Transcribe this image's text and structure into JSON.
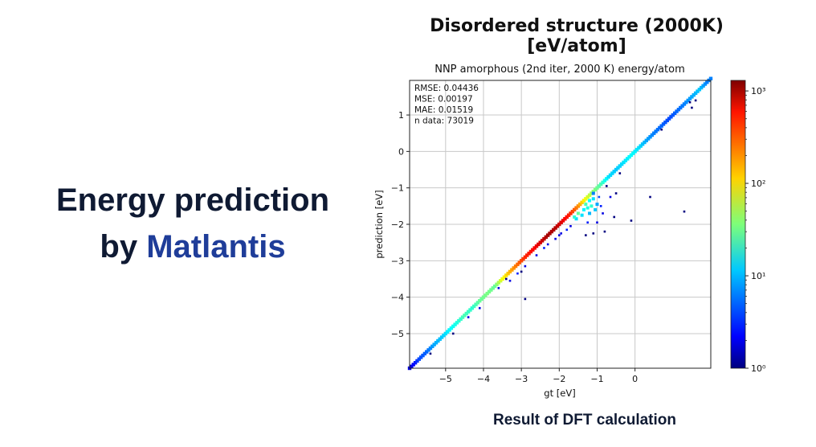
{
  "slide": {
    "headline_line1": "Energy prediction",
    "headline_by": "by ",
    "headline_brand": "Matlantis",
    "top_title": "Disordered structure (2000K) [eV/atom]",
    "bottom_caption": "Result of DFT calculation"
  },
  "colors": {
    "headline": "#0f1a33",
    "brand": "#1f3d99"
  },
  "chart_data": {
    "type": "heatmap",
    "title": "NNP amorphous (2nd iter, 2000 K) energy/atom",
    "xlabel": "gt [eV]",
    "ylabel": "prediction [eV]",
    "xlim": [
      -5.95,
      2.0
    ],
    "ylim": [
      -5.95,
      1.95
    ],
    "xticks": [
      -5,
      -4,
      -3,
      -2,
      -1,
      0
    ],
    "yticks": [
      -5,
      -4,
      -3,
      -2,
      -1,
      0,
      1
    ],
    "xtick_labels": [
      "−5",
      "−4",
      "−3",
      "−2",
      "−1",
      "0"
    ],
    "ytick_labels": [
      "−5",
      "−4",
      "−3",
      "−2",
      "−1",
      "0",
      "1"
    ],
    "grid": true,
    "stats": [
      "RMSE: 0.04436",
      "MSE: 0.00197",
      "MAE: 0.01519",
      "n data: 73019"
    ],
    "colorbar": {
      "scale": "log",
      "range": [
        1,
        1300
      ],
      "ticks": [
        1,
        10,
        100,
        1000
      ],
      "tick_labels": [
        "10⁰",
        "10¹",
        "10²",
        "10³"
      ],
      "colormap": "jet"
    },
    "density_along_diagonal": [
      {
        "gt": -5.9,
        "count": 2
      },
      {
        "gt": -5.7,
        "count": 4
      },
      {
        "gt": -5.5,
        "count": 5
      },
      {
        "gt": -5.3,
        "count": 8
      },
      {
        "gt": -5.1,
        "count": 10
      },
      {
        "gt": -4.9,
        "count": 14
      },
      {
        "gt": -4.7,
        "count": 18
      },
      {
        "gt": -4.5,
        "count": 25
      },
      {
        "gt": -4.3,
        "count": 20
      },
      {
        "gt": -4.1,
        "count": 30
      },
      {
        "gt": -3.9,
        "count": 35
      },
      {
        "gt": -3.7,
        "count": 30
      },
      {
        "gt": -3.5,
        "count": 80
      },
      {
        "gt": -3.3,
        "count": 150
      },
      {
        "gt": -3.1,
        "count": 250
      },
      {
        "gt": -2.9,
        "count": 400
      },
      {
        "gt": -2.7,
        "count": 500
      },
      {
        "gt": -2.5,
        "count": 700
      },
      {
        "gt": -2.3,
        "count": 1000
      },
      {
        "gt": -2.1,
        "count": 900
      },
      {
        "gt": -1.9,
        "count": 600
      },
      {
        "gt": -1.7,
        "count": 400
      },
      {
        "gt": -1.5,
        "count": 200
      },
      {
        "gt": -1.3,
        "count": 80
      },
      {
        "gt": -1.1,
        "count": 40
      },
      {
        "gt": -0.9,
        "count": 25
      },
      {
        "gt": -0.7,
        "count": 12
      },
      {
        "gt": -0.5,
        "count": 10
      },
      {
        "gt": -0.3,
        "count": 12
      },
      {
        "gt": -0.1,
        "count": 15
      },
      {
        "gt": 0.1,
        "count": 12
      },
      {
        "gt": 0.3,
        "count": 8
      },
      {
        "gt": 0.5,
        "count": 6
      },
      {
        "gt": 0.7,
        "count": 5
      },
      {
        "gt": 0.9,
        "count": 4
      },
      {
        "gt": 1.1,
        "count": 5
      },
      {
        "gt": 1.3,
        "count": 6
      },
      {
        "gt": 1.5,
        "count": 8
      },
      {
        "gt": 1.7,
        "count": 10
      },
      {
        "gt": 1.9,
        "count": 6
      }
    ],
    "scatter_cloud": [
      {
        "gt": -1.2,
        "pred": -1.35,
        "count": 15
      },
      {
        "gt": -1.15,
        "pred": -1.5,
        "count": 20
      },
      {
        "gt": -1.1,
        "pred": -1.3,
        "count": 12
      },
      {
        "gt": -1.25,
        "pred": -1.55,
        "count": 18
      },
      {
        "gt": -1.05,
        "pred": -1.6,
        "count": 10
      },
      {
        "gt": -1.3,
        "pred": -1.45,
        "count": 25
      },
      {
        "gt": -1.35,
        "pred": -1.6,
        "count": 14
      },
      {
        "gt": -1.0,
        "pred": -1.45,
        "count": 8
      },
      {
        "gt": -1.2,
        "pred": -1.7,
        "count": 9
      },
      {
        "gt": -1.4,
        "pred": -1.75,
        "count": 12
      },
      {
        "gt": -1.1,
        "pred": -1.15,
        "count": 6
      },
      {
        "gt": -1.5,
        "pred": -1.7,
        "count": 30
      },
      {
        "gt": -1.55,
        "pred": -1.85,
        "count": 12
      },
      {
        "gt": -1.6,
        "pred": -1.8,
        "count": 20
      },
      {
        "gt": -0.95,
        "pred": -1.25,
        "count": 4
      },
      {
        "gt": -0.9,
        "pred": -1.5,
        "count": 3
      },
      {
        "gt": -0.85,
        "pred": -1.7,
        "count": 2
      },
      {
        "gt": -1.0,
        "pred": -1.95,
        "count": 2
      },
      {
        "gt": -1.25,
        "pred": -1.95,
        "count": 3
      },
      {
        "gt": -1.8,
        "pred": -2.15,
        "count": 3
      },
      {
        "gt": -2.0,
        "pred": -2.3,
        "count": 2
      },
      {
        "gt": -2.1,
        "pred": -2.4,
        "count": 2
      },
      {
        "gt": -1.7,
        "pred": -2.05,
        "count": 2
      },
      {
        "gt": -2.4,
        "pred": -2.65,
        "count": 3
      },
      {
        "gt": -2.6,
        "pred": -2.85,
        "count": 2
      },
      {
        "gt": -2.9,
        "pred": -3.15,
        "count": 2
      },
      {
        "gt": -3.1,
        "pred": -3.35,
        "count": 3
      },
      {
        "gt": -3.3,
        "pred": -3.55,
        "count": 2
      },
      {
        "gt": -3.6,
        "pred": -3.75,
        "count": 2
      },
      {
        "gt": -4.1,
        "pred": -4.3,
        "count": 2
      },
      {
        "gt": -4.4,
        "pred": -4.55,
        "count": 2
      },
      {
        "gt": -2.3,
        "pred": -2.55,
        "count": 2
      },
      {
        "gt": -1.95,
        "pred": -2.25,
        "count": 2
      },
      {
        "gt": -0.65,
        "pred": -1.25,
        "count": 2
      },
      {
        "gt": -0.5,
        "pred": -1.15,
        "count": 1
      },
      {
        "gt": -0.55,
        "pred": -1.8,
        "count": 1
      },
      {
        "gt": -0.1,
        "pred": -1.9,
        "count": 1
      },
      {
        "gt": 0.4,
        "pred": -1.25,
        "count": 1
      },
      {
        "gt": 1.3,
        "pred": -1.65,
        "count": 1
      },
      {
        "gt": -0.8,
        "pred": -2.2,
        "count": 1
      },
      {
        "gt": -1.1,
        "pred": -2.25,
        "count": 1
      },
      {
        "gt": -1.3,
        "pred": -2.3,
        "count": 1
      },
      {
        "gt": -2.9,
        "pred": -4.05,
        "count": 1
      },
      {
        "gt": -3.0,
        "pred": -3.3,
        "count": 1
      },
      {
        "gt": -3.4,
        "pred": -3.5,
        "count": 1
      },
      {
        "gt": -0.4,
        "pred": -0.6,
        "count": 1
      },
      {
        "gt": -0.75,
        "pred": -0.95,
        "count": 1
      },
      {
        "gt": 0.7,
        "pred": 0.6,
        "count": 1
      },
      {
        "gt": 1.5,
        "pred": 1.2,
        "count": 1
      },
      {
        "gt": 1.45,
        "pred": 1.35,
        "count": 1
      },
      {
        "gt": 1.6,
        "pred": 1.4,
        "count": 1
      },
      {
        "gt": -4.8,
        "pred": -5.0,
        "count": 1
      },
      {
        "gt": -5.4,
        "pred": -5.55,
        "count": 1
      }
    ]
  }
}
